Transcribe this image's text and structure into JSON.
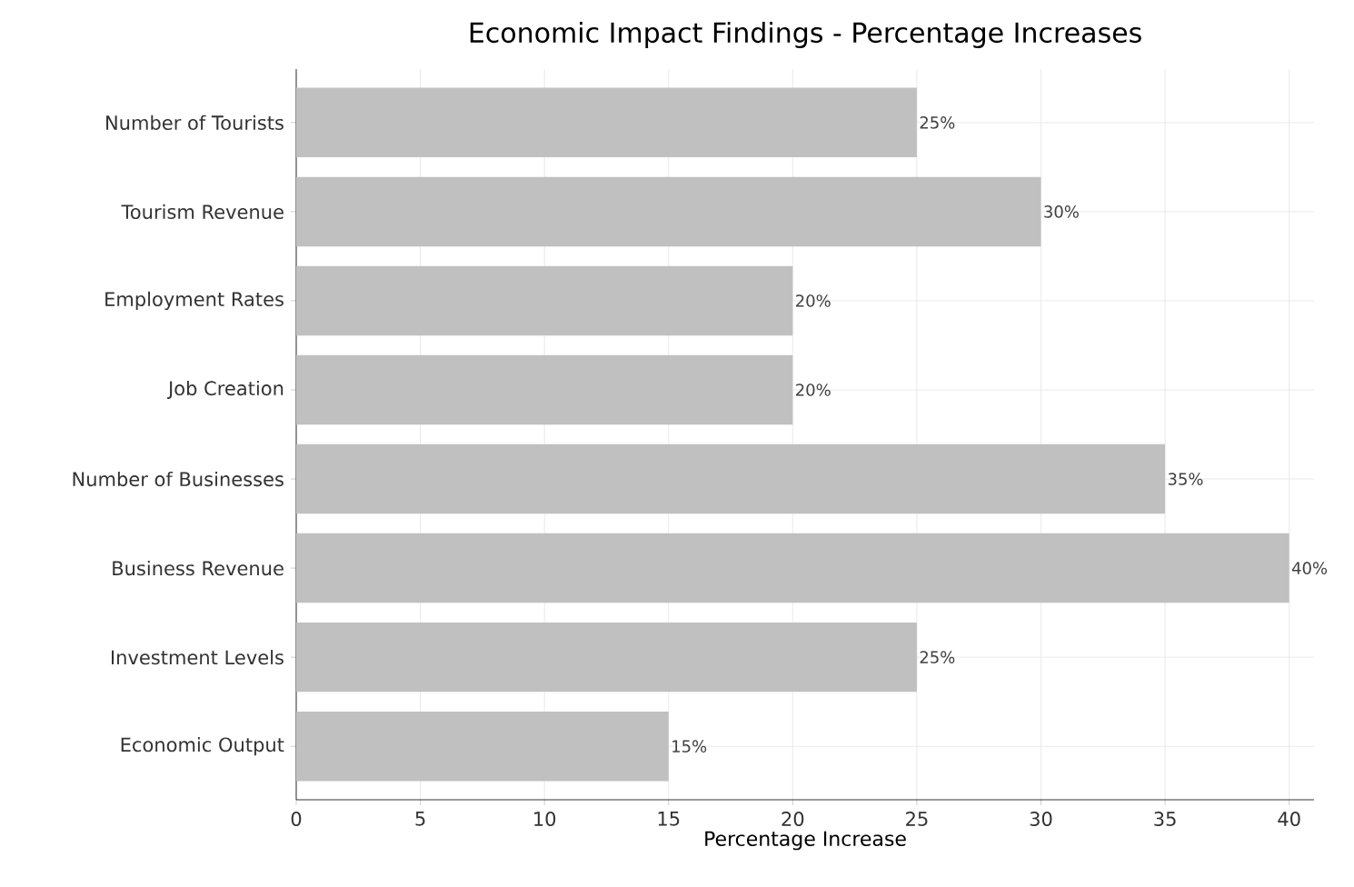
{
  "chart_data": {
    "type": "bar",
    "orientation": "horizontal",
    "title": "Economic Impact Findings - Percentage Increases",
    "xlabel": "Percentage Increase",
    "categories": [
      "Number of Tourists",
      "Tourism Revenue",
      "Employment Rates",
      "Job Creation",
      "Number of Businesses",
      "Business Revenue",
      "Investment Levels",
      "Economic Output"
    ],
    "values": [
      25,
      30,
      20,
      20,
      35,
      40,
      25,
      15
    ],
    "value_labels": [
      "25%",
      "30%",
      "20%",
      "20%",
      "35%",
      "40%",
      "25%",
      "15%"
    ],
    "color": "#c0c0c0",
    "xlim": [
      0,
      41
    ],
    "xticks": [
      0,
      5,
      10,
      15,
      20,
      25,
      30,
      35,
      40
    ],
    "grid": true
  }
}
